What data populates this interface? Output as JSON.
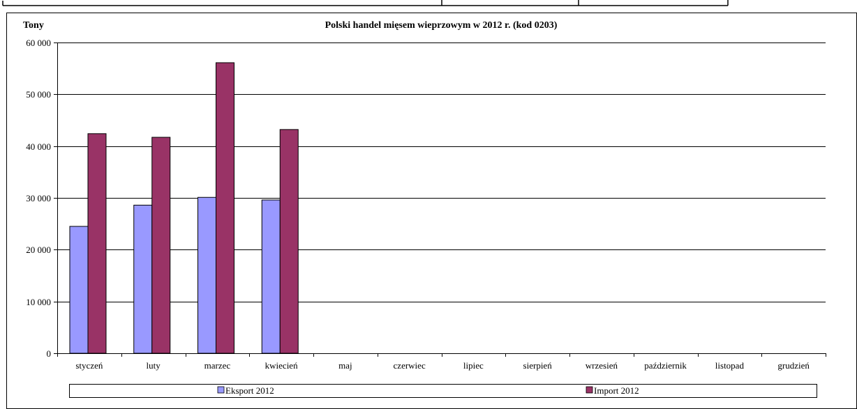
{
  "chart_data": {
    "type": "bar",
    "title": "Polski handel mięsem wieprzowym w 2012 r. (kod 0203)",
    "ylabel": "Tony",
    "xlabel": "",
    "categories": [
      "styczeń",
      "luty",
      "marzec",
      "kwiecień",
      "maj",
      "czerwiec",
      "lipiec",
      "sierpień",
      "wrzesień",
      "październik",
      "listopad",
      "grudzień"
    ],
    "series": [
      {
        "name": "Eksport 2012",
        "color": "#9999ff",
        "values": [
          24500,
          28600,
          30100,
          29600,
          null,
          null,
          null,
          null,
          null,
          null,
          null,
          null
        ]
      },
      {
        "name": "Import 2012",
        "color": "#993366",
        "values": [
          42400,
          41700,
          56100,
          43200,
          null,
          null,
          null,
          null,
          null,
          null,
          null,
          null
        ]
      }
    ],
    "ylim": [
      0,
      60000
    ],
    "yticks": [
      "0",
      "10 000",
      "20 000",
      "30 000",
      "40 000",
      "50 000",
      "60 000"
    ],
    "ytick_values": [
      0,
      10000,
      20000,
      30000,
      40000,
      50000,
      60000
    ],
    "grid": true,
    "legend_position": "bottom"
  }
}
